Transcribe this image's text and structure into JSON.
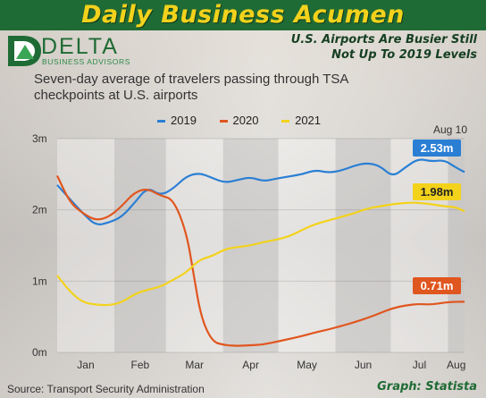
{
  "header": {
    "banner_title": "Daily Business Acumen",
    "headline_line1": "U.S. Airports Are Busier Still",
    "headline_line2": "Not Up To 2019 Levels"
  },
  "logo": {
    "word": "DELTA",
    "sub": "BUSINESS ADVISORS"
  },
  "footer": {
    "source": "Source: Transport Security Administration",
    "credit": "Graph: Statista"
  },
  "colors": {
    "banner": "#1f6b35",
    "banner_text": "#f2d21c",
    "s2019": "#2a7fd4",
    "s2020": "#e0561f",
    "s2021": "#f3d21b"
  },
  "chart_data": {
    "type": "line",
    "title": "Seven-day average of travelers passing through TSA checkpoints at U.S. airports",
    "xlabel": "",
    "ylabel": "",
    "x_ticks": [
      "Jan",
      "Feb",
      "Mar",
      "Apr",
      "May",
      "Jun",
      "Jul",
      "Aug"
    ],
    "y_ticks": [
      "0m",
      "1m",
      "2m",
      "3m"
    ],
    "ylim": [
      0,
      3
    ],
    "x_axis": "day of year (Jan 1 to Aug 10)",
    "grid": "shaded alternate month bands",
    "legend_position": "top-center",
    "series": [
      {
        "name": "2019",
        "color": "#2a7fd4",
        "points": [
          [
            "Jan 1",
            2.35
          ],
          [
            "Jan 8",
            2.15
          ],
          [
            "Jan 15",
            1.95
          ],
          [
            "Jan 22",
            1.78
          ],
          [
            "Jan 29",
            1.82
          ],
          [
            "Feb 5",
            1.9
          ],
          [
            "Feb 12",
            2.1
          ],
          [
            "Feb 19",
            2.32
          ],
          [
            "Feb 26",
            2.2
          ],
          [
            "Mar 5",
            2.3
          ],
          [
            "Mar 12",
            2.47
          ],
          [
            "Mar 19",
            2.52
          ],
          [
            "Mar 26",
            2.45
          ],
          [
            "Apr 2",
            2.38
          ],
          [
            "Apr 9",
            2.42
          ],
          [
            "Apr 16",
            2.46
          ],
          [
            "Apr 23",
            2.4
          ],
          [
            "Apr 30",
            2.44
          ],
          [
            "May 7",
            2.47
          ],
          [
            "May 14",
            2.5
          ],
          [
            "May 21",
            2.56
          ],
          [
            "May 28",
            2.52
          ],
          [
            "Jun 4",
            2.55
          ],
          [
            "Jun 11",
            2.62
          ],
          [
            "Jun 18",
            2.66
          ],
          [
            "Jun 25",
            2.62
          ],
          [
            "Jul 2",
            2.46
          ],
          [
            "Jul 9",
            2.6
          ],
          [
            "Jul 16",
            2.72
          ],
          [
            "Jul 23",
            2.68
          ],
          [
            "Jul 30",
            2.7
          ],
          [
            "Aug 5",
            2.6
          ],
          [
            "Aug 10",
            2.53
          ]
        ]
      },
      {
        "name": "2020",
        "color": "#e0561f",
        "points": [
          [
            "Jan 1",
            2.48
          ],
          [
            "Jan 8",
            2.1
          ],
          [
            "Jan 15",
            1.95
          ],
          [
            "Jan 22",
            1.85
          ],
          [
            "Jan 29",
            1.9
          ],
          [
            "Feb 5",
            2.05
          ],
          [
            "Feb 12",
            2.25
          ],
          [
            "Feb 19",
            2.3
          ],
          [
            "Feb 26",
            2.2
          ],
          [
            "Mar 5",
            2.15
          ],
          [
            "Mar 12",
            1.7
          ],
          [
            "Mar 16",
            1.1
          ],
          [
            "Mar 20",
            0.5
          ],
          [
            "Mar 26",
            0.15
          ],
          [
            "Apr 2",
            0.1
          ],
          [
            "Apr 9",
            0.09
          ],
          [
            "Apr 16",
            0.1
          ],
          [
            "Apr 23",
            0.11
          ],
          [
            "Apr 30",
            0.15
          ],
          [
            "May 7",
            0.19
          ],
          [
            "May 14",
            0.23
          ],
          [
            "May 21",
            0.28
          ],
          [
            "May 28",
            0.32
          ],
          [
            "Jun 4",
            0.37
          ],
          [
            "Jun 11",
            0.42
          ],
          [
            "Jun 18",
            0.48
          ],
          [
            "Jun 25",
            0.55
          ],
          [
            "Jul 2",
            0.62
          ],
          [
            "Jul 9",
            0.66
          ],
          [
            "Jul 16",
            0.68
          ],
          [
            "Jul 23",
            0.67
          ],
          [
            "Jul 30",
            0.7
          ],
          [
            "Aug 5",
            0.71
          ],
          [
            "Aug 10",
            0.71
          ]
        ]
      },
      {
        "name": "2021",
        "color": "#f3d21b",
        "points": [
          [
            "Jan 1",
            1.08
          ],
          [
            "Jan 8",
            0.85
          ],
          [
            "Jan 15",
            0.7
          ],
          [
            "Jan 22",
            0.67
          ],
          [
            "Jan 29",
            0.66
          ],
          [
            "Feb 5",
            0.7
          ],
          [
            "Feb 12",
            0.82
          ],
          [
            "Feb 19",
            0.88
          ],
          [
            "Feb 26",
            0.92
          ],
          [
            "Mar 5",
            1.02
          ],
          [
            "Mar 12",
            1.12
          ],
          [
            "Mar 19",
            1.3
          ],
          [
            "Mar 26",
            1.35
          ],
          [
            "Apr 2",
            1.45
          ],
          [
            "Apr 9",
            1.48
          ],
          [
            "Apr 16",
            1.5
          ],
          [
            "Apr 23",
            1.55
          ],
          [
            "Apr 30",
            1.58
          ],
          [
            "May 7",
            1.63
          ],
          [
            "May 14",
            1.72
          ],
          [
            "May 21",
            1.8
          ],
          [
            "May 28",
            1.85
          ],
          [
            "Jun 4",
            1.9
          ],
          [
            "Jun 11",
            1.95
          ],
          [
            "Jun 18",
            2.02
          ],
          [
            "Jun 25",
            2.05
          ],
          [
            "Jul 2",
            2.08
          ],
          [
            "Jul 9",
            2.1
          ],
          [
            "Jul 16",
            2.1
          ],
          [
            "Jul 23",
            2.08
          ],
          [
            "Jul 30",
            2.05
          ],
          [
            "Aug 5",
            2.04
          ],
          [
            "Aug 10",
            1.98
          ]
        ]
      }
    ],
    "end_labels": [
      {
        "series": "2019",
        "text": "2.53m",
        "date_label": "Aug 10"
      },
      {
        "series": "2021",
        "text": "1.98m"
      },
      {
        "series": "2020",
        "text": "0.71m"
      }
    ]
  }
}
